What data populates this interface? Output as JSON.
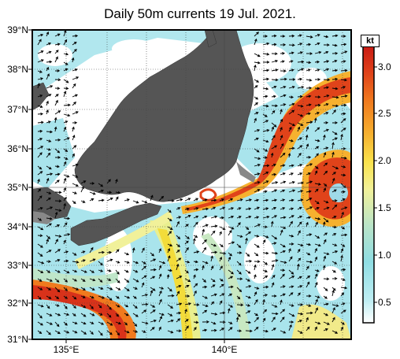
{
  "title": "Daily 50m currents 19 Jul. 2021.",
  "latitude_labels": [
    "39°N",
    "38°N",
    "37°N",
    "36°N",
    "35°N",
    "34°N",
    "33°N",
    "32°N",
    "31°N"
  ],
  "longitude_labels": [
    "135°E",
    "140°E"
  ],
  "colorbar": {
    "unit": "kt",
    "ticks": [
      "3.0",
      "2.5",
      "2.0",
      "1.5",
      "1.0",
      "0.5"
    ],
    "colors": [
      "#ffffff",
      "#aee6ee",
      "#8fdde3",
      "#b9e4c8",
      "#f1f19a",
      "#f9e24c",
      "#f6b12f",
      "#f07a1e",
      "#e0431a",
      "#c81a14"
    ],
    "range_kt": [
      0.3,
      3.2
    ]
  },
  "colors": {
    "land": "#555555",
    "frame": "#000000",
    "low_speed": "#ffffff",
    "slow_current": "#9ee0ea",
    "kuroshio_core": "#e84a1c"
  }
}
